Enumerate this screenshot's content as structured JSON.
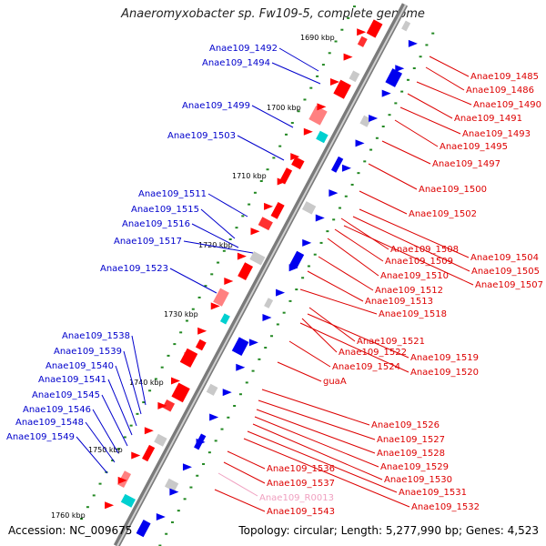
{
  "header": {
    "title": "Anaeromyxobacter sp. Fw109-5, complete genome"
  },
  "footer": {
    "accession": "Accession: NC_009675",
    "summary": "Topology: circular; Length: 5,277,990 bp; Genes: 4,523"
  },
  "colors": {
    "forward_label": "#0000cc",
    "reverse_label": "#dd0000",
    "rna_label": "#f0a0c0",
    "backbone": "#888888",
    "tick": "#228822"
  },
  "kbp_marks": [
    "1690 kbp",
    "1700 kbp",
    "1710 kbp",
    "1720 kbp",
    "1730 kbp",
    "1740 kbp",
    "1750 kbp",
    "1760 kbp"
  ],
  "left_labels": [
    "Anae109_1492",
    "Anae109_1494",
    "Anae109_1499",
    "Anae109_1503",
    "Anae109_1511",
    "Anae109_1515",
    "Anae109_1516",
    "Anae109_1517",
    "Anae109_1523",
    "Anae109_1538",
    "Anae109_1539",
    "Anae109_1540",
    "Anae109_1541",
    "Anae109_1545",
    "Anae109_1546",
    "Anae109_1548",
    "Anae109_1549"
  ],
  "right_labels": [
    "Anae109_1485",
    "Anae109_1486",
    "Anae109_1490",
    "Anae109_1491",
    "Anae109_1493",
    "Anae109_1495",
    "Anae109_1497",
    "Anae109_1500",
    "Anae109_1502",
    "Anae109_1508",
    "Anae109_1504",
    "Anae109_1509",
    "Anae109_1505",
    "Anae109_1510",
    "Anae109_1507",
    "Anae109_1512",
    "Anae109_1513",
    "Anae109_1518",
    "Anae109_1521",
    "Anae109_1522",
    "Anae109_1519",
    "Anae109_1524",
    "Anae109_1520",
    "guaA",
    "Anae109_1526",
    "Anae109_1527",
    "Anae109_1528",
    "Anae109_1529",
    "Anae109_1530",
    "Anae109_1531",
    "Anae109_1532",
    "Anae109_1536",
    "Anae109_1537",
    "Anae109_1543"
  ],
  "rna_labels": [
    "Anae109_R0013"
  ]
}
